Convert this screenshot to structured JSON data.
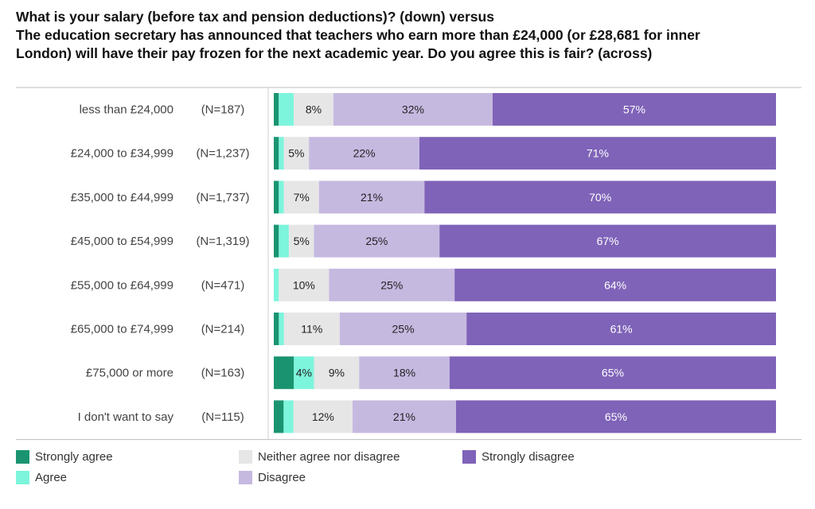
{
  "title_lines": [
    "What is your salary (before tax and pension deductions)? (down) versus",
    "The education secretary has announced that teachers who earn more than £24,000 (or £28,681 for inner",
    "London) will have their pay frozen for the next academic year. Do you agree this is fair? (across)"
  ],
  "chart_data": {
    "type": "bar",
    "orientation": "horizontal",
    "stacked": "percent",
    "title": "What is your salary (before tax and pension deductions)? (down) versus The education secretary has announced that teachers who earn more than £24,000 (or £28,681 for inner London) will have their pay frozen for the next academic year. Do you agree this is fair? (across)",
    "categories": [
      "less than £24,000",
      "£24,000 to £34,999",
      "£35,000 to £44,999",
      "£45,000 to £54,999",
      "£55,000 to £64,999",
      "£65,000 to £74,999",
      "£75,000 or more",
      "I don't want to say"
    ],
    "counts": [
      "(N=187)",
      "(N=1,237)",
      "(N=1,737)",
      "(N=1,319)",
      "(N=471)",
      "(N=214)",
      "(N=163)",
      "(N=115)"
    ],
    "series": [
      {
        "name": "Strongly agree",
        "color": "#1a9470",
        "text_color": "#222222",
        "values": [
          1,
          1,
          1,
          1,
          0,
          1,
          4,
          2
        ]
      },
      {
        "name": "Agree",
        "color": "#7df5dc",
        "text_color": "#222222",
        "values": [
          3,
          1,
          1,
          2,
          1,
          1,
          4,
          2
        ]
      },
      {
        "name": "Neither agree nor disagree",
        "color": "#e6e6e6",
        "text_color": "#222222",
        "values": [
          8,
          5,
          7,
          5,
          10,
          11,
          9,
          12
        ]
      },
      {
        "name": "Disagree",
        "color": "#c6b9e0",
        "text_color": "#222222",
        "values": [
          32,
          22,
          21,
          25,
          25,
          25,
          18,
          21
        ]
      },
      {
        "name": "Strongly disagree",
        "color": "#7f63b8",
        "text_color": "#ffffff",
        "values": [
          57,
          71,
          70,
          67,
          64,
          61,
          65,
          65
        ]
      }
    ],
    "labels": [
      [
        "",
        "",
        "8%",
        "32%",
        "57%"
      ],
      [
        "",
        "",
        "5%",
        "22%",
        "71%"
      ],
      [
        "",
        "",
        "7%",
        "21%",
        "70%"
      ],
      [
        "",
        "",
        "5%",
        "25%",
        "67%"
      ],
      [
        "",
        "",
        "10%",
        "25%",
        "64%"
      ],
      [
        "",
        "",
        "11%",
        "25%",
        "61%"
      ],
      [
        "",
        "4%",
        "9%",
        "18%",
        "65%"
      ],
      [
        "",
        "",
        "12%",
        "21%",
        "65%"
      ]
    ],
    "xlim": [
      0,
      100
    ],
    "legend_position": "bottom"
  }
}
